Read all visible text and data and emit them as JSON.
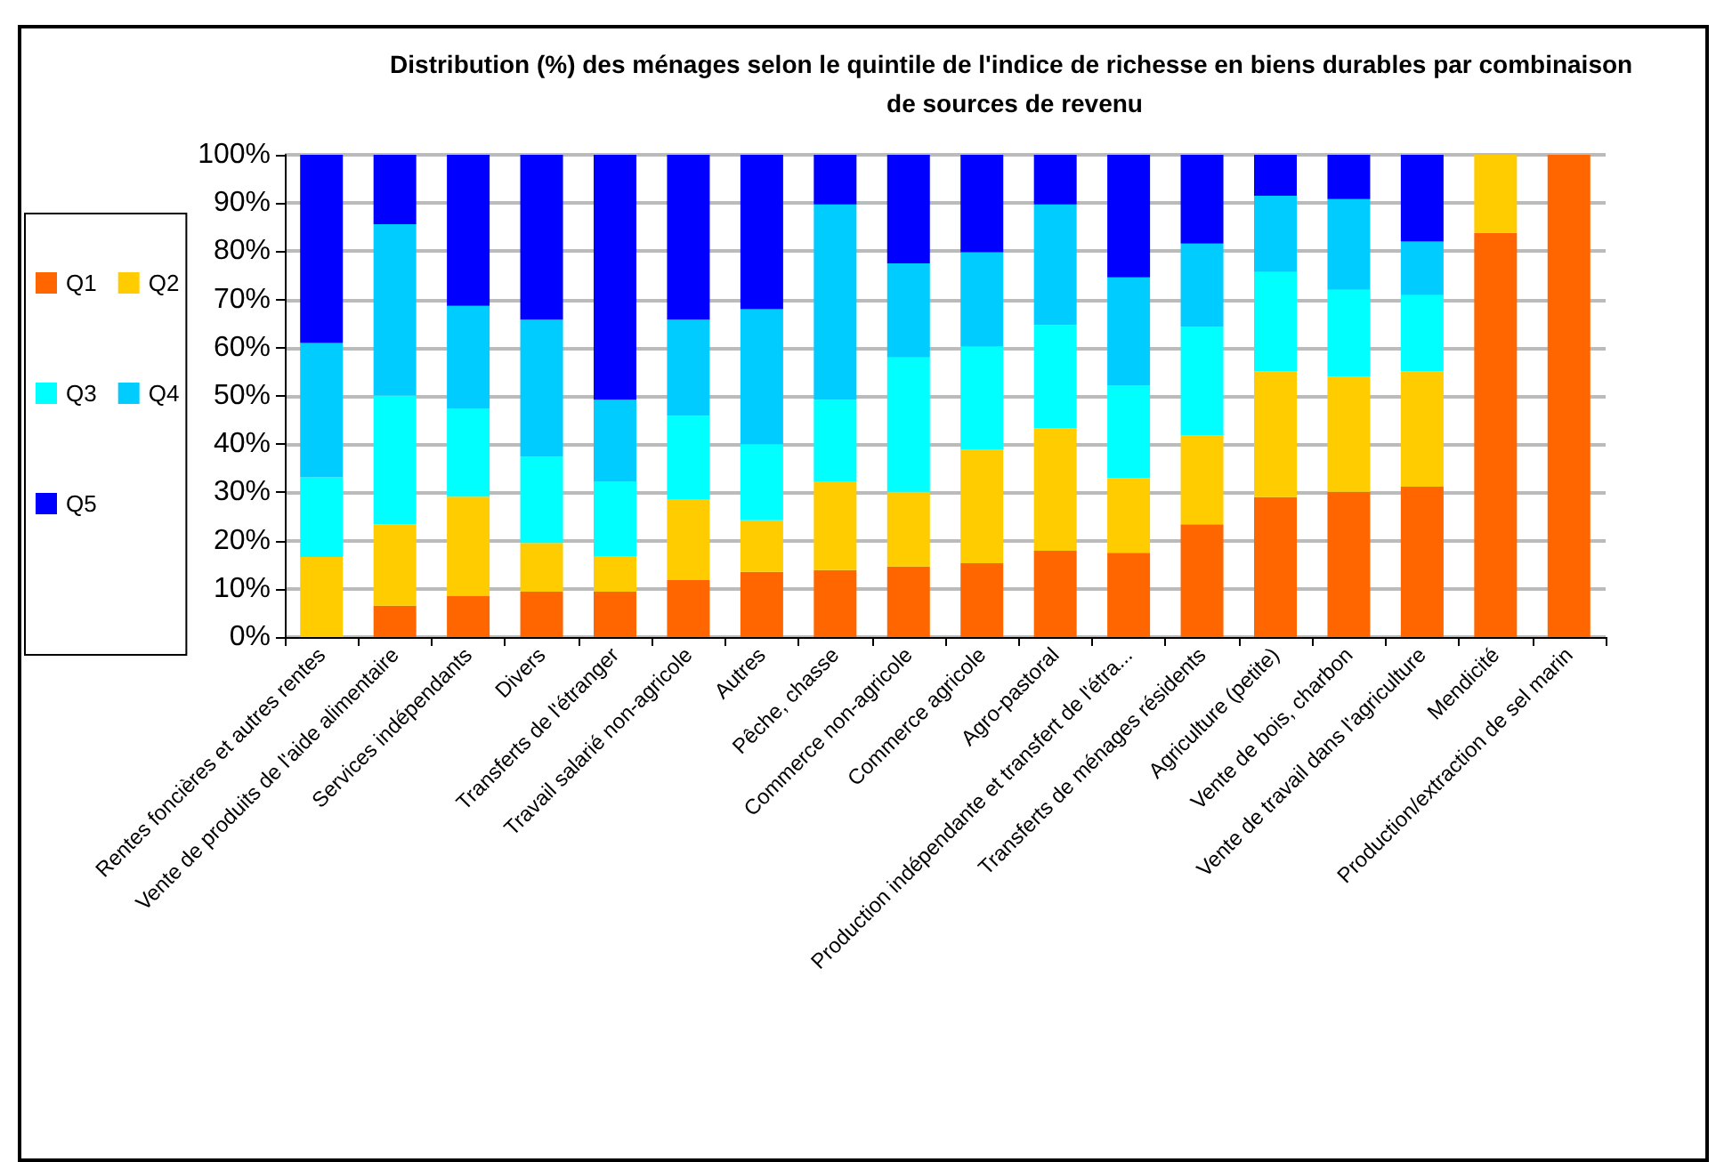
{
  "chart_data": {
    "type": "bar",
    "title": "Distribution (%) des ménages selon le quintile de l'indice de richesse en biens durables par combinaison de sources de revenu",
    "stacked": true,
    "grid": "y",
    "legend": "left",
    "categories": [
      "Rentes foncières et autres rentes",
      "Vente de produits de l'aide alimentaire",
      "Services indépendants",
      "Divers",
      "Transferts de l'étranger",
      "Travail salarié non-agricole",
      "Autres",
      "Pêche, chasse",
      "Commerce non-agricole",
      "Commerce agricole",
      "Agro-pastoral",
      "Production indépendante et transfert de l'étra...",
      "Transferts de ménages résidents",
      "Agriculture (petite)",
      "Vente de bois, charbon",
      "Vente de travail dans l'agriculture",
      "Mendicité",
      "Production/extraction de sel marin"
    ],
    "series": [
      {
        "name": "Q1",
        "color": "#ff6600",
        "values": [
          0,
          6.5,
          8.5,
          9.4,
          9.4,
          11.8,
          13.5,
          13.9,
          14.6,
          15.3,
          17.9,
          17.5,
          23.4,
          29.0,
          30.1,
          31.2,
          83.8,
          100
        ]
      },
      {
        "name": "Q2",
        "color": "#ffcc00",
        "values": [
          16.6,
          16.9,
          20.6,
          10.1,
          7.4,
          16.8,
          10.7,
          18.4,
          15.5,
          23.6,
          25.4,
          15.5,
          18.4,
          26.1,
          23.9,
          23.9,
          16.2,
          0
        ]
      },
      {
        "name": "Q3",
        "color": "#00ffff",
        "values": [
          16.5,
          26.7,
          18.3,
          17.9,
          15.5,
          17.3,
          15.8,
          16.9,
          27.9,
          21.3,
          21.4,
          19.1,
          22.5,
          20.6,
          18.0,
          15.8,
          0,
          0
        ]
      },
      {
        "name": "Q4",
        "color": "#00ccff",
        "values": [
          27.9,
          35.5,
          21.3,
          28.4,
          16.9,
          19.9,
          28.0,
          40.5,
          19.5,
          19.6,
          25.0,
          22.5,
          17.3,
          15.8,
          18.8,
          11.1,
          0,
          0
        ]
      },
      {
        "name": "Q5",
        "color": "#0000ff",
        "values": [
          39.0,
          14.4,
          31.3,
          34.2,
          50.8,
          34.2,
          32.0,
          10.3,
          22.5,
          20.2,
          10.3,
          25.4,
          18.4,
          8.5,
          9.2,
          18.0,
          0,
          0
        ]
      }
    ],
    "ylim": [
      0,
      100
    ],
    "yticks": [
      {
        "value": 0,
        "label": "0%"
      },
      {
        "value": 10,
        "label": "10%"
      },
      {
        "value": 20,
        "label": "20%"
      },
      {
        "value": 30,
        "label": "30%"
      },
      {
        "value": 40,
        "label": "40%"
      },
      {
        "value": 50,
        "label": "50%"
      },
      {
        "value": 60,
        "label": "60%"
      },
      {
        "value": 70,
        "label": "70%"
      },
      {
        "value": 80,
        "label": "80%"
      },
      {
        "value": 90,
        "label": "90%"
      },
      {
        "value": 100,
        "label": "100%"
      }
    ]
  }
}
